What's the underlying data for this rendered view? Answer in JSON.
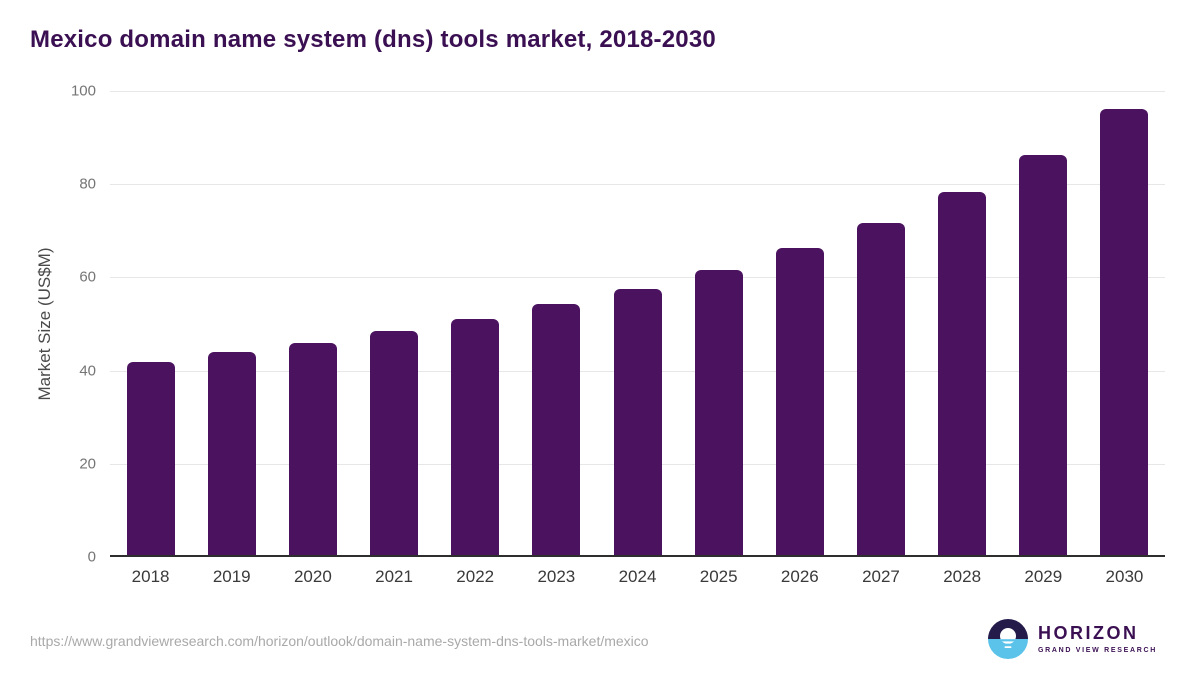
{
  "title": "Mexico domain name system (dns) tools market, 2018-2030",
  "footer": {
    "source_url": "https://www.grandviewresearch.com/horizon/outlook/domain-name-system-dns-tools-market/mexico",
    "logo": {
      "brand": "HORIZON",
      "sub_brand": "GRAND VIEW RESEARCH"
    }
  },
  "colors": {
    "bar-color": "#4a125f",
    "title-color": "#3b1053",
    "grid-color": "#e7e7e7",
    "axis-line-color": "#2e2e2e",
    "ytick-color": "#757575",
    "xtick-color": "#3a3a3a",
    "ylabel-color": "#4a4a4a",
    "url-color": "#a9a9a9",
    "logo-dark": "#241b4b",
    "logo-blue": "#5bc3ea"
  },
  "chart_data": {
    "type": "bar",
    "title": "Mexico domain name system (dns) tools market, 2018-2030",
    "categories": [
      "2018",
      "2019",
      "2020",
      "2021",
      "2022",
      "2023",
      "2024",
      "2025",
      "2026",
      "2027",
      "2028",
      "2029",
      "2030"
    ],
    "values": [
      41.5,
      43.5,
      45.5,
      48.0,
      50.7,
      53.8,
      57.0,
      61.2,
      65.8,
      71.2,
      78.0,
      85.8,
      95.8
    ],
    "xlabel": "",
    "ylabel": "Market Size (US$M)",
    "ylim": [
      0,
      100
    ],
    "y_ticks": [
      0,
      20,
      40,
      60,
      80,
      100
    ],
    "grid": "horizontal",
    "legend": "none",
    "bar_color": "#4a125f"
  }
}
